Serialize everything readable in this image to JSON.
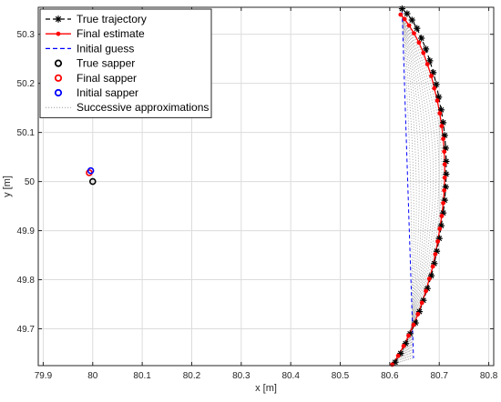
{
  "chart_data": {
    "type": "line",
    "title": "",
    "xlabel": "x [m]",
    "ylabel": "y [m]",
    "xlim": [
      79.89,
      80.81
    ],
    "ylim": [
      49.625,
      50.355
    ],
    "xticks": [
      79.9,
      80,
      80.1,
      80.2,
      80.3,
      80.4,
      80.5,
      80.6,
      80.7,
      80.8
    ],
    "xtick_labels": [
      "79.9",
      "80",
      "80.1",
      "80.2",
      "80.3",
      "80.4",
      "80.5",
      "80.6",
      "80.7",
      "80.8"
    ],
    "yticks": [
      49.7,
      49.8,
      49.9,
      50,
      50.1,
      50.2,
      50.3
    ],
    "ytick_labels": [
      "49.7",
      "49.8",
      "49.9",
      "50",
      "50.1",
      "50.2",
      "50.3"
    ],
    "grid": true,
    "legend_position": "top-left",
    "colors": {
      "true_trajectory": "#000000",
      "final_estimate": "#ff0000",
      "initial_guess": "#0000ff",
      "true_sapper": "#000000",
      "final_sapper": "#ff0000",
      "initial_sapper": "#0000ff",
      "successive": "#a0a0a0"
    },
    "series": [
      {
        "name": "True trajectory",
        "style": "dashed-black-asterisk",
        "x": [
          80.611,
          80.622,
          80.632,
          80.641,
          80.652,
          80.66,
          80.668,
          80.676,
          80.684,
          80.69,
          80.695,
          80.7,
          80.704,
          80.708,
          80.711,
          80.713,
          80.714,
          80.714,
          80.713,
          80.711,
          80.708,
          80.704,
          80.699,
          80.694,
          80.688,
          80.681,
          80.673,
          80.664,
          80.655,
          80.645,
          80.635,
          80.625
        ],
        "y": [
          49.632,
          49.65,
          49.67,
          49.69,
          49.712,
          49.735,
          49.758,
          49.782,
          49.808,
          49.833,
          49.858,
          49.884,
          49.91,
          49.936,
          49.962,
          49.989,
          50.015,
          50.041,
          50.068,
          50.094,
          50.12,
          50.146,
          50.172,
          50.198,
          50.222,
          50.246,
          50.27,
          50.292,
          50.312,
          50.329,
          50.342,
          50.352
        ]
      },
      {
        "name": "Final estimate",
        "style": "solid-red-dot",
        "x": [
          80.605,
          80.617,
          80.628,
          80.638,
          80.648,
          80.657,
          80.665,
          80.673,
          80.68,
          80.687,
          80.692,
          80.697,
          80.701,
          80.705,
          80.708,
          80.71,
          80.711,
          80.711,
          80.71,
          80.708,
          80.705,
          80.701,
          80.696,
          80.69,
          80.684,
          80.676,
          80.668,
          80.659,
          80.649,
          80.639,
          80.63,
          80.622
        ],
        "y": [
          49.627,
          49.645,
          49.665,
          49.686,
          49.708,
          49.73,
          49.753,
          49.777,
          49.802,
          49.827,
          49.852,
          49.878,
          49.904,
          49.93,
          49.956,
          49.982,
          50.008,
          50.035,
          50.061,
          50.087,
          50.113,
          50.139,
          50.165,
          50.19,
          50.215,
          50.239,
          50.262,
          50.283,
          50.302,
          50.318,
          50.331,
          50.34
        ]
      },
      {
        "name": "Initial guess",
        "style": "dashed-blue",
        "x": [
          80.625,
          80.648
        ],
        "y": [
          50.345,
          49.64
        ]
      }
    ],
    "sappers": [
      {
        "name": "True sapper",
        "x": 80.0,
        "y": 50.0,
        "color": "#000000"
      },
      {
        "name": "Final sapper",
        "x": 79.993,
        "y": 50.018,
        "color": "#ff0000"
      },
      {
        "name": "Initial sapper",
        "x": 79.996,
        "y": 50.022,
        "color": "#0000ff"
      }
    ],
    "successive_approximations": {
      "name": "Successive approximations",
      "style": "dotted-gray",
      "count": 12
    },
    "legend": [
      {
        "label": "True trajectory",
        "marker": "asterisk",
        "line": "dashed",
        "color": "#000000"
      },
      {
        "label": "Final estimate",
        "marker": "dot",
        "line": "solid",
        "color": "#ff0000"
      },
      {
        "label": "Initial guess",
        "marker": "none",
        "line": "dashed",
        "color": "#0000ff"
      },
      {
        "label": "True sapper",
        "marker": "circle",
        "line": "none",
        "color": "#000000"
      },
      {
        "label": "Final sapper",
        "marker": "circle",
        "line": "none",
        "color": "#ff0000"
      },
      {
        "label": "Initial sapper",
        "marker": "circle",
        "line": "none",
        "color": "#0000ff"
      },
      {
        "label": "Successive approximations",
        "marker": "none",
        "line": "dotted",
        "color": "#a0a0a0"
      }
    ]
  }
}
